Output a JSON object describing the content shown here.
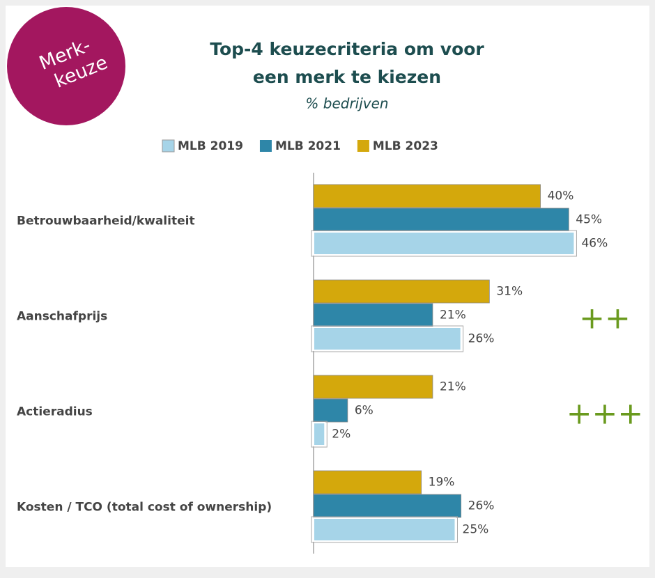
{
  "chart_data": {
    "type": "barh",
    "title": [
      "Top-4 keuzecriteria om voor",
      "een merk te kiezen"
    ],
    "subtitle": "% bedrijven",
    "badge": [
      "Merk-",
      "keuze"
    ],
    "categories": [
      "Betrouwbaarheid/kwaliteit",
      "Aanschafprijs",
      "Actieradius",
      "Kosten / TCO (total cost of ownership)"
    ],
    "series": [
      {
        "name": "MLB 2019",
        "color": "#a6d4e8",
        "values": [
          46,
          26,
          2,
          25
        ],
        "value_labels": [
          "46%",
          "26%",
          "2%",
          "25%"
        ]
      },
      {
        "name": "MLB 2021",
        "color": "#2e86a8",
        "values": [
          45,
          21,
          6,
          26
        ],
        "value_labels": [
          "45%",
          "21%",
          "6%",
          "26%"
        ]
      },
      {
        "name": "MLB 2023",
        "color": "#d4a80c",
        "values": [
          40,
          31,
          21,
          19
        ],
        "value_labels": [
          "40%",
          "31%",
          "21%",
          "19%"
        ]
      }
    ],
    "xlim": [
      0,
      50
    ],
    "annotations": [
      {
        "text": "++",
        "category": 1
      },
      {
        "text": "+++",
        "category": 2
      }
    ],
    "legend": "top"
  }
}
